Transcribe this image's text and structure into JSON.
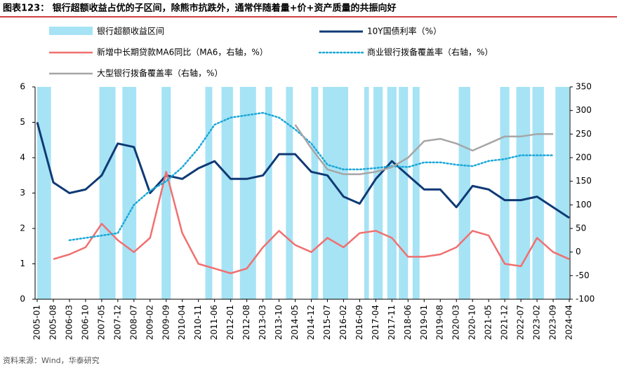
{
  "chart_data": {
    "type": "line",
    "title": "图表123：  银行超额收益占优的子区间，除熊市抗跌外，通常伴随着量+价+资产质量的共振向好",
    "source": "资料来源：Wind，华泰研究",
    "x": [
      "2005-01",
      "2005-08",
      "2006-03",
      "2006-10",
      "2007-05",
      "2007-12",
      "2008-07",
      "2009-02",
      "2009-09",
      "2010-04",
      "2010-11",
      "2011-06",
      "2012-01",
      "2012-08",
      "2013-03",
      "2013-10",
      "2014-05",
      "2014-12",
      "2015-07",
      "2016-02",
      "2016-09",
      "2017-04",
      "2017-11",
      "2018-06",
      "2019-01",
      "2019-08",
      "2020-03",
      "2020-10",
      "2021-05",
      "2021-12",
      "2022-07",
      "2023-02",
      "2023-09",
      "2024-04"
    ],
    "ylim": [
      0,
      6
    ],
    "yticks": [
      0,
      1,
      2,
      3,
      4,
      5,
      6
    ],
    "y2lim": [
      -100,
      350
    ],
    "y2ticks": [
      -100,
      -50,
      0,
      50,
      100,
      150,
      200,
      250,
      300,
      350
    ],
    "shaded": {
      "name": "银行超额收益区间",
      "color": "#a6e3f5",
      "ranges": [
        [
          "2005-01",
          "2005-07"
        ],
        [
          "2007-04",
          "2007-11"
        ],
        [
          "2008-02",
          "2008-08"
        ],
        [
          "2009-07",
          "2009-11"
        ],
        [
          "2011-02",
          "2011-05"
        ],
        [
          "2011-09",
          "2012-02"
        ],
        [
          "2012-05",
          "2012-12"
        ],
        [
          "2013-04",
          "2013-07"
        ],
        [
          "2014-01",
          "2014-04"
        ],
        [
          "2014-12",
          "2015-03"
        ],
        [
          "2015-05",
          "2016-04"
        ],
        [
          "2016-11",
          "2017-01"
        ],
        [
          "2017-03",
          "2017-07"
        ],
        [
          "2017-09",
          "2018-01"
        ],
        [
          "2018-02",
          "2018-06"
        ],
        [
          "2018-08",
          "2018-11"
        ],
        [
          "2020-04",
          "2020-09"
        ],
        [
          "2021-10",
          "2022-02"
        ],
        [
          "2022-05",
          "2022-11"
        ],
        [
          "2022-12",
          "2023-05"
        ],
        [
          "2023-10",
          "2024-04"
        ]
      ]
    },
    "series": [
      {
        "name": "10Y国债利率（%）",
        "color": "#0f3a75",
        "style": "solid",
        "width": 3,
        "values": [
          5.0,
          3.3,
          3.0,
          3.1,
          3.5,
          4.4,
          4.3,
          3.0,
          3.5,
          3.4,
          3.7,
          3.9,
          3.4,
          3.4,
          3.5,
          4.1,
          4.1,
          3.6,
          3.5,
          2.9,
          2.7,
          3.4,
          3.9,
          3.5,
          3.1,
          3.1,
          2.6,
          3.2,
          3.1,
          2.8,
          2.8,
          2.9,
          2.6,
          2.3
        ]
      },
      {
        "name": "新增中长期贷款MA6同比（MA6，右轴，%）",
        "color": "#f07070",
        "style": "solid",
        "width": 2.5,
        "axis": "y2",
        "values": [
          null,
          -15,
          -5,
          10,
          60,
          25,
          0,
          30,
          170,
          40,
          -25,
          -35,
          -45,
          -35,
          10,
          45,
          15,
          0,
          30,
          10,
          40,
          45,
          30,
          -10,
          -10,
          -5,
          10,
          45,
          35,
          -25,
          -30,
          30,
          0,
          -15
        ]
      },
      {
        "name": "商业银行拨备覆盖率（右轴，%）",
        "color": "#1aa7d8",
        "style": "dotted",
        "width": 2.5,
        "axis": "y2",
        "values": [
          null,
          null,
          25,
          30,
          35,
          40,
          100,
          130,
          150,
          180,
          220,
          270,
          285,
          290,
          295,
          285,
          260,
          230,
          185,
          175,
          175,
          178,
          182,
          180,
          190,
          190,
          185,
          182,
          193,
          197,
          205,
          205,
          205,
          null
        ]
      },
      {
        "name": "大型银行拨备覆盖率（右轴，%）",
        "color": "#a6a6a6",
        "style": "solid",
        "width": 2.5,
        "axis": "y2",
        "values": [
          null,
          null,
          null,
          null,
          null,
          null,
          null,
          null,
          null,
          null,
          null,
          null,
          null,
          null,
          null,
          null,
          270,
          220,
          175,
          165,
          165,
          170,
          180,
          200,
          235,
          240,
          230,
          215,
          230,
          245,
          245,
          250,
          250,
          null
        ]
      }
    ]
  }
}
